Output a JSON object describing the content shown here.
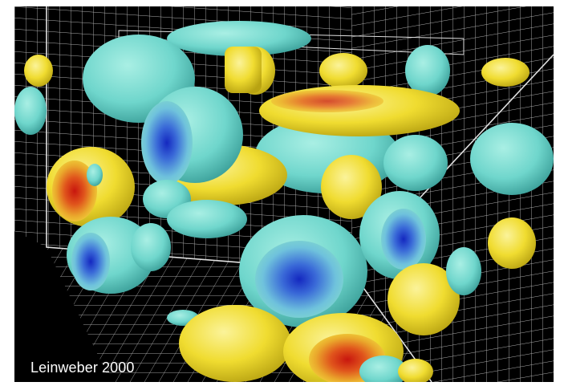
{
  "image": {
    "credit": "Leinweber 2000",
    "colors": {
      "background": "#000000",
      "grid": "#c8c8c8",
      "cyan": "#6fd6cc",
      "yellow": "#f2e13a",
      "red": "#d8261a",
      "blue": "#1a36c8"
    }
  }
}
